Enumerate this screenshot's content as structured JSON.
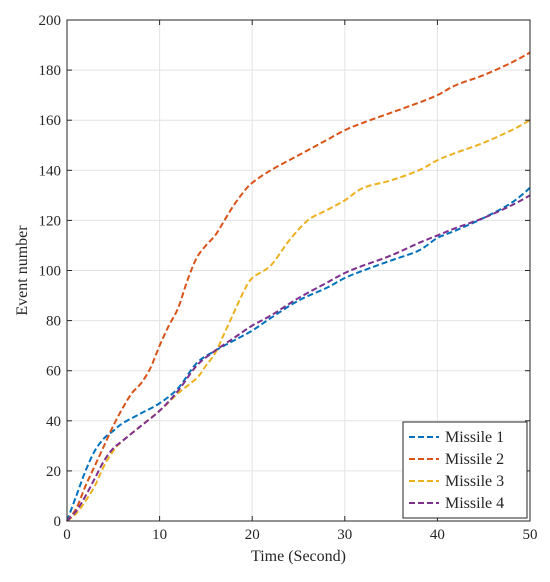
{
  "chart_data": {
    "type": "line",
    "title": "",
    "xlabel": "Time (Second)",
    "ylabel": "Event number",
    "xlim": [
      0,
      50
    ],
    "ylim": [
      0,
      200
    ],
    "xticks": [
      0,
      10,
      20,
      30,
      40,
      50
    ],
    "yticks": [
      0,
      20,
      40,
      60,
      80,
      100,
      120,
      140,
      160,
      180,
      200
    ],
    "grid": true,
    "legend_position": "bottom-right",
    "line_style": "dashed",
    "series": [
      {
        "name": "Missile 1",
        "color": "#0072BD",
        "x": [
          0,
          1,
          2,
          3,
          4,
          5,
          6,
          8,
          10,
          12,
          14,
          16,
          18,
          20,
          22,
          25,
          28,
          30,
          32,
          35,
          38,
          40,
          42,
          45,
          48,
          50
        ],
        "y": [
          0,
          10,
          20,
          28,
          33,
          36,
          39,
          43,
          47,
          53,
          63,
          68,
          72,
          76,
          81,
          88,
          93,
          97,
          100,
          104,
          108,
          113,
          116,
          121,
          127,
          133
        ]
      },
      {
        "name": "Missile 2",
        "color": "#D95319",
        "x": [
          0,
          1,
          2,
          3,
          4,
          5,
          6,
          7,
          8,
          9,
          10,
          11,
          12,
          13,
          14,
          15,
          16,
          17,
          18,
          19,
          20,
          22,
          25,
          28,
          30,
          32,
          35,
          38,
          40,
          42,
          45,
          48,
          50
        ],
        "y": [
          0,
          5,
          14,
          22,
          30,
          38,
          45,
          51,
          55,
          61,
          70,
          78,
          85,
          96,
          105,
          110,
          114,
          120,
          126,
          131,
          135,
          140,
          146,
          152,
          156,
          159,
          163,
          167,
          170,
          174,
          178,
          183,
          187
        ]
      },
      {
        "name": "Missile 3",
        "color": "#EDB120",
        "x": [
          0,
          1,
          2,
          3,
          4,
          5,
          6,
          8,
          10,
          12,
          14,
          15,
          16,
          17,
          18,
          19,
          20,
          22,
          24,
          26,
          28,
          30,
          32,
          35,
          38,
          40,
          42,
          45,
          48,
          50
        ],
        "y": [
          0,
          3,
          8,
          14,
          22,
          28,
          32,
          38,
          44,
          51,
          57,
          62,
          67,
          75,
          83,
          91,
          97,
          102,
          112,
          120,
          124,
          128,
          133,
          136,
          140,
          144,
          147,
          151,
          156,
          160
        ]
      },
      {
        "name": "Missile 4",
        "color": "#7E2F8E",
        "x": [
          0,
          1,
          2,
          3,
          4,
          5,
          6,
          8,
          10,
          12,
          14,
          16,
          18,
          20,
          22,
          25,
          28,
          30,
          32,
          35,
          38,
          40,
          42,
          45,
          48,
          50
        ],
        "y": [
          0,
          4,
          10,
          17,
          24,
          29,
          32,
          38,
          44,
          52,
          62,
          68,
          73,
          78,
          82,
          89,
          95,
          99,
          102,
          106,
          111,
          114,
          117,
          121,
          126,
          130
        ]
      }
    ]
  }
}
